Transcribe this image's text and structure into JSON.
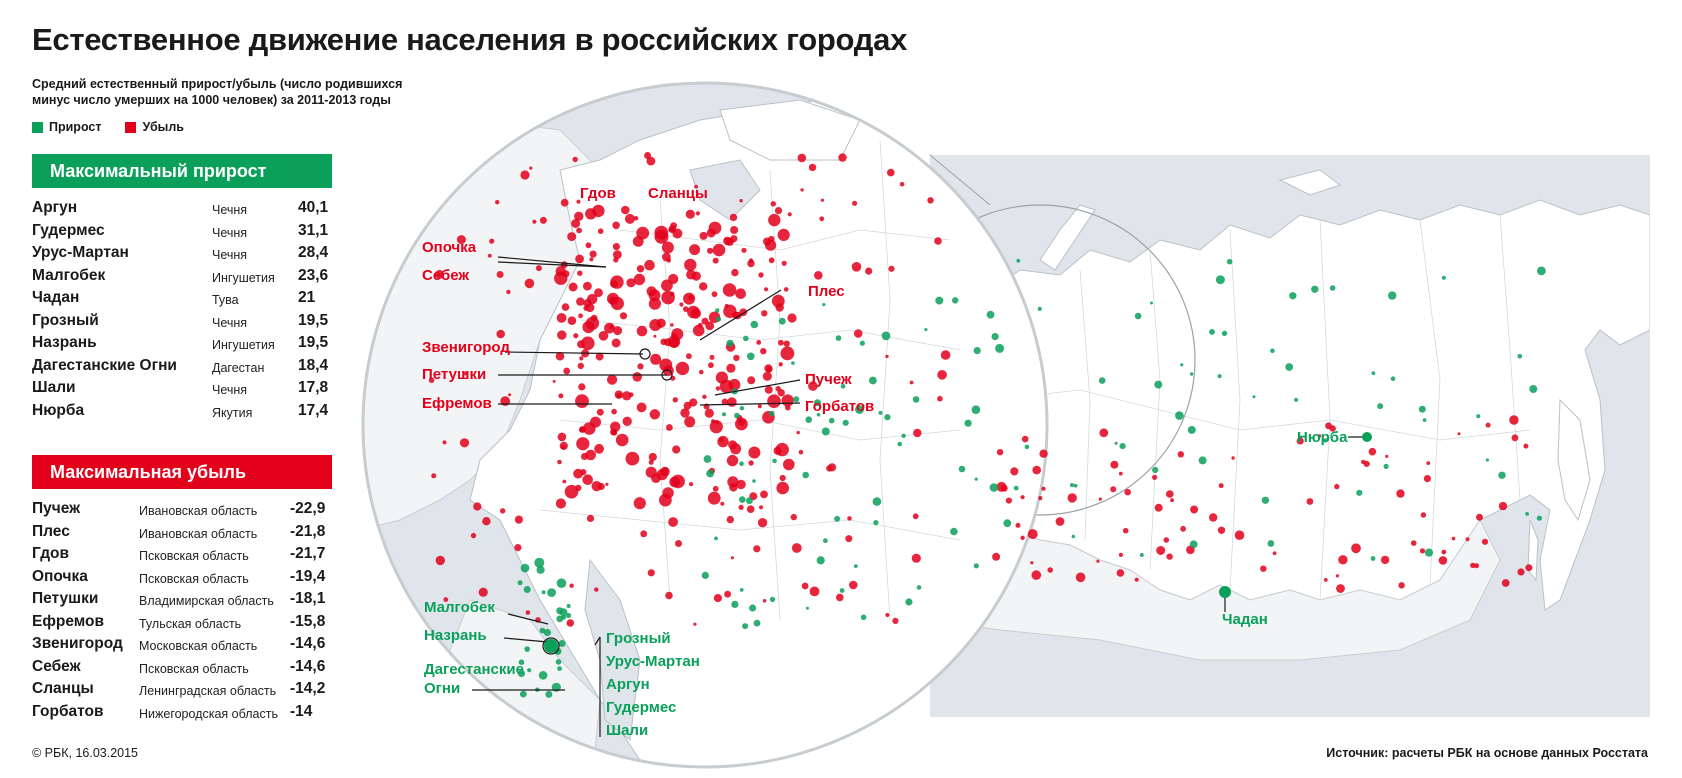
{
  "title": "Естественное движение населения в российских городах",
  "subtitle": "Средний естественный прирост/убыль (число родившихся минус число умерших на 1000 человек) за 2011-2013 годы",
  "legend": {
    "growth": "Прирост",
    "decline": "Убыль"
  },
  "colors": {
    "growth": "#0aa05a",
    "decline": "#e3001b",
    "water": "#dfe5ea",
    "land": "#ffffff"
  },
  "max_growth": {
    "heading": "Максимальный прирост",
    "rows": [
      {
        "city": "Аргун",
        "region": "Чечня",
        "value": "40,1"
      },
      {
        "city": "Гудермес",
        "region": "Чечня",
        "value": "31,1"
      },
      {
        "city": "Урус-Мартан",
        "region": "Чечня",
        "value": "28,4"
      },
      {
        "city": "Малгобек",
        "region": "Ингушетия",
        "value": "23,6"
      },
      {
        "city": "Чадан",
        "region": "Тува",
        "value": "21"
      },
      {
        "city": "Грозный",
        "region": "Чечня",
        "value": "19,5"
      },
      {
        "city": "Назрань",
        "region": "Ингушетия",
        "value": "19,5"
      },
      {
        "city": "Дагестанские Огни",
        "region": "Дагестан",
        "value": "18,4"
      },
      {
        "city": "Шали",
        "region": "Чечня",
        "value": "17,8"
      },
      {
        "city": "Нюрба",
        "region": "Якутия",
        "value": "17,4"
      }
    ]
  },
  "max_decline": {
    "heading": "Максимальная убыль",
    "rows": [
      {
        "city": "Пучеж",
        "region": "Ивановская область",
        "value": "-22,9"
      },
      {
        "city": "Плес",
        "region": "Ивановская область",
        "value": "-21,8"
      },
      {
        "city": "Гдов",
        "region": "Псковская область",
        "value": "-21,7"
      },
      {
        "city": "Опочка",
        "region": "Псковская область",
        "value": "-19,4"
      },
      {
        "city": "Петушки",
        "region": "Владимирская область",
        "value": "-18,1"
      },
      {
        "city": "Ефремов",
        "region": "Тульская область",
        "value": "-15,8"
      },
      {
        "city": "Звенигород",
        "region": "Московская область",
        "value": "-14,6"
      },
      {
        "city": "Себеж",
        "region": "Псковская область",
        "value": "-14,6"
      },
      {
        "city": "Сланцы",
        "region": "Ленинградская область",
        "value": "-14,2"
      },
      {
        "city": "Горбатов",
        "region": "Нижегородская область",
        "value": "-14"
      }
    ]
  },
  "map_labels": {
    "gdov": "Гдов",
    "slantsy": "Сланцы",
    "opochka": "Опочка",
    "sebezh": "Себеж",
    "zvenigorod": "Звенигород",
    "petushki": "Петушки",
    "efremov": "Ефремов",
    "ples": "Плес",
    "puchezh": "Пучеж",
    "gorbatov": "Горбатов",
    "malgobek": "Малгобек",
    "nazran": "Назрань",
    "dag_ogni_1": "Дагестанские",
    "dag_ogni_2": "Огни",
    "grozny": "Грозный",
    "urus_martan": "Урус-Мартан",
    "argun": "Аргун",
    "gudermes": "Гудермес",
    "shali": "Шали",
    "nyurba": "Нюрба",
    "chadan": "Чадан"
  },
  "copyright": "© РБК, 16.03.2015",
  "source": "Источник: расчеты РБК на основе данных Росстата"
}
